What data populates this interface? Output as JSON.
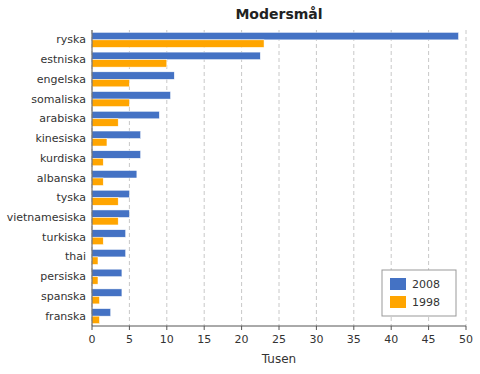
{
  "chart_data": {
    "type": "bar",
    "orientation": "horizontal",
    "title": "Modersmål",
    "xlabel": "Tusen",
    "categories": [
      "ryska",
      "estniska",
      "engelska",
      "somaliska",
      "arabiska",
      "kinesiska",
      "kurdiska",
      "albanska",
      "tyska",
      "vietnamesiska",
      "turkiska",
      "thai",
      "persiska",
      "spanska",
      "franska"
    ],
    "series": [
      {
        "name": "2008",
        "color": "#4472C4",
        "values": [
          49,
          22.5,
          11,
          10.5,
          9,
          6.5,
          6.5,
          6,
          5,
          5,
          4.5,
          4.5,
          4,
          4,
          2.5
        ]
      },
      {
        "name": "1998",
        "color": "#FFA500",
        "values": [
          23,
          10,
          5,
          5,
          3.5,
          2,
          1.5,
          1.5,
          3.5,
          3.5,
          1.5,
          0.8,
          0.8,
          1.0,
          1.0
        ]
      }
    ],
    "xlim": [
      0,
      50
    ],
    "xticks": [
      0,
      5,
      10,
      15,
      20,
      25,
      30,
      35,
      40,
      45,
      50
    ],
    "grid": true,
    "legend": "lower right"
  }
}
